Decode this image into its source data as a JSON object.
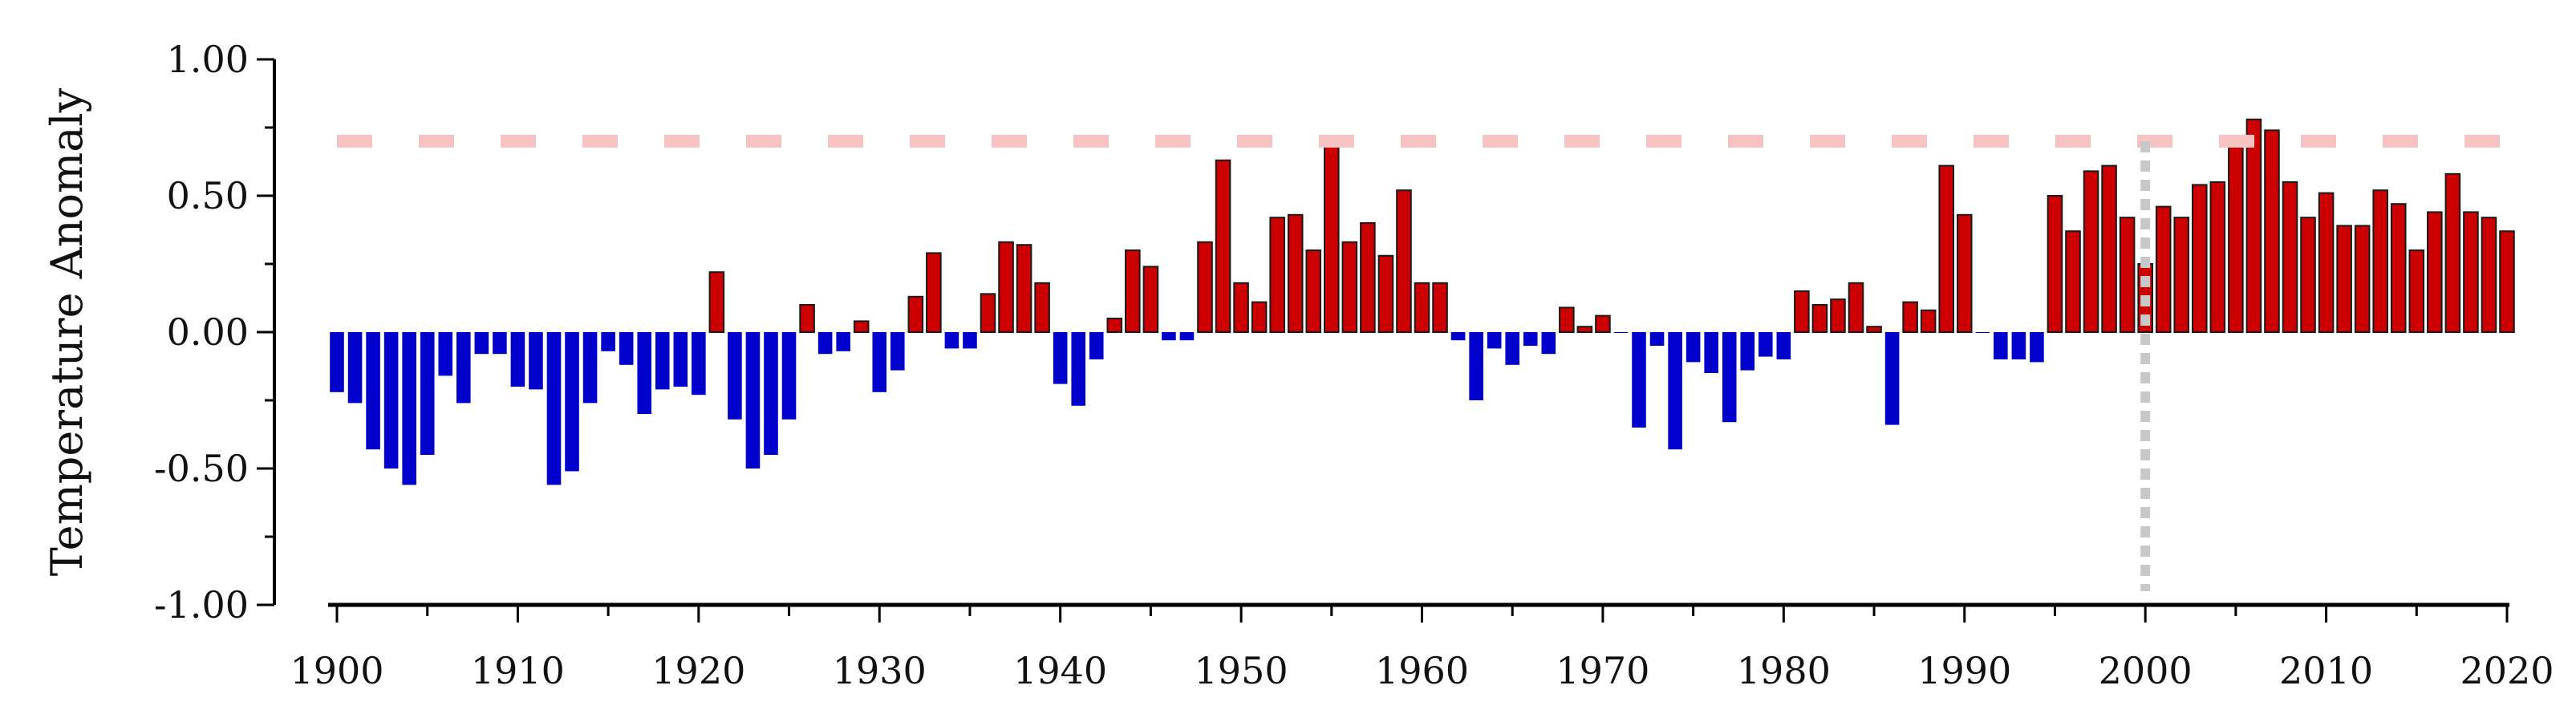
{
  "chart_data": {
    "type": "bar",
    "title": "",
    "xlabel": "",
    "ylabel": "Temperature Anomaly",
    "xlim": [
      1900,
      2020
    ],
    "ylim": [
      -1.0,
      1.0
    ],
    "yticks": [
      "1.00",
      "0.50",
      "0.00",
      "-0.50",
      "-1.00"
    ],
    "ytick_values": [
      1.0,
      0.5,
      0.0,
      -0.5,
      -1.0
    ],
    "xticks": [
      "1900",
      "1910",
      "1920",
      "1930",
      "1940",
      "1950",
      "1960",
      "1970",
      "1980",
      "1990",
      "2000",
      "2010",
      "2020"
    ],
    "xtick_values": [
      1900,
      1910,
      1920,
      1930,
      1940,
      1950,
      1960,
      1970,
      1980,
      1990,
      2000,
      2010,
      2020
    ],
    "colors": {
      "positive": "#cc0000",
      "negative": "#0000cc",
      "threshold": "#f7c2c2",
      "reference": "#c8c8c8"
    },
    "threshold_line": {
      "y": 0.7,
      "style": "dashed"
    },
    "reference_line": {
      "x": 2000,
      "style": "dotted"
    },
    "grid": false,
    "years": [
      1900,
      1901,
      1902,
      1903,
      1904,
      1905,
      1906,
      1907,
      1908,
      1909,
      1910,
      1911,
      1912,
      1913,
      1914,
      1915,
      1916,
      1917,
      1918,
      1919,
      1920,
      1921,
      1922,
      1923,
      1924,
      1925,
      1926,
      1927,
      1928,
      1929,
      1930,
      1931,
      1932,
      1933,
      1934,
      1935,
      1936,
      1937,
      1938,
      1939,
      1940,
      1941,
      1942,
      1943,
      1944,
      1945,
      1946,
      1947,
      1948,
      1949,
      1950,
      1951,
      1952,
      1953,
      1954,
      1955,
      1956,
      1957,
      1958,
      1959,
      1960,
      1961,
      1962,
      1963,
      1964,
      1965,
      1966,
      1967,
      1968,
      1969,
      1970,
      1971,
      1972,
      1973,
      1974,
      1975,
      1976,
      1977,
      1978,
      1979,
      1980,
      1981,
      1982,
      1983,
      1984,
      1985,
      1986,
      1987,
      1988,
      1989,
      1990,
      1991,
      1992,
      1993,
      1994,
      1995,
      1996,
      1997,
      1998,
      1999,
      2000,
      2001,
      2002,
      2003,
      2004,
      2005,
      2006,
      2007,
      2008,
      2009,
      2010,
      2011,
      2012,
      2013,
      2014,
      2015,
      2016,
      2017,
      2018,
      2019,
      2020
    ],
    "values": [
      -0.22,
      -0.26,
      -0.43,
      -0.5,
      -0.56,
      -0.45,
      -0.16,
      -0.26,
      -0.08,
      -0.08,
      -0.2,
      -0.21,
      -0.56,
      -0.51,
      -0.26,
      -0.07,
      -0.12,
      -0.3,
      -0.21,
      -0.2,
      -0.23,
      0.22,
      -0.32,
      -0.5,
      -0.45,
      -0.32,
      0.1,
      -0.08,
      -0.07,
      0.04,
      -0.22,
      -0.14,
      0.13,
      0.29,
      -0.06,
      -0.06,
      0.14,
      0.33,
      0.32,
      0.18,
      -0.19,
      -0.27,
      -0.1,
      0.05,
      0.3,
      0.24,
      -0.03,
      -0.03,
      0.33,
      0.63,
      0.18,
      0.11,
      0.42,
      0.43,
      0.3,
      0.7,
      0.33,
      0.4,
      0.28,
      0.52,
      0.18,
      0.18,
      -0.03,
      -0.25,
      -0.06,
      -0.12,
      -0.05,
      -0.08,
      0.09,
      0.02,
      0.06,
      0.0,
      -0.35,
      -0.05,
      -0.43,
      -0.11,
      -0.15,
      -0.33,
      -0.14,
      -0.09,
      -0.1,
      0.15,
      0.1,
      0.12,
      0.18,
      0.02,
      -0.34,
      0.11,
      0.08,
      0.61,
      0.43,
      0.0,
      -0.1,
      -0.1,
      -0.11,
      0.5,
      0.37,
      0.59,
      0.61,
      0.42,
      0.25,
      0.46,
      0.42,
      0.54,
      0.55,
      0.72,
      0.78,
      0.74,
      0.55,
      0.42,
      0.51,
      0.39,
      0.39,
      0.52,
      0.47,
      0.3,
      0.44,
      0.58,
      0.44,
      0.42,
      0.37
    ]
  }
}
